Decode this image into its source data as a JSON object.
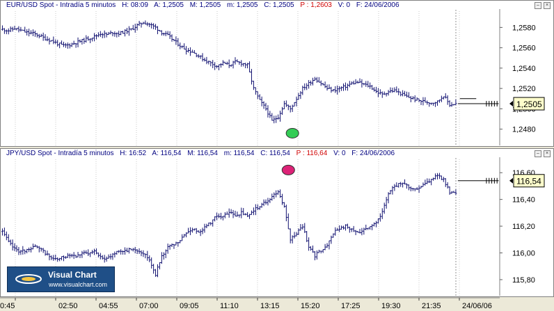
{
  "top": {
    "title_parts": [
      "EUR/USD Spot - Intradía 5 minutos",
      "H: 08:09",
      "A: 1,2505",
      "M: 1,2505",
      "m: 1,2505",
      "C: 1,2505"
    ],
    "title_red": "P : 1,2603",
    "title_tail": [
      "V: 0",
      "F: 24/06/2006"
    ],
    "price_label": "1,2505"
  },
  "bottom": {
    "title_parts": [
      "JPY/USD Spot - Intradía 5 minutos",
      "H: 16:52",
      "A: 116,54",
      "M: 116,54",
      "m: 116,54",
      "C: 116,54"
    ],
    "title_red": "P : 116,64",
    "title_tail": [
      "V: 0",
      "F: 24/06/2006"
    ],
    "price_label": "116,54"
  },
  "logo": {
    "name": "Visual Chart",
    "url": "www.visualchart.com"
  },
  "colors": {
    "bars": "#101070",
    "marker_green": "#33cc55",
    "marker_magenta": "#dd2277",
    "label_bg": "#ffffcc"
  },
  "chart_data": [
    {
      "type": "ohlc",
      "title": "EUR/USD Spot - Intradía 5 minutos",
      "ylim": [
        1.2464,
        1.2596
      ],
      "y_ticks": [
        "1,2580",
        "1,2560",
        "1,2540",
        "1,2520",
        "1,2500",
        "1,2480"
      ],
      "y_tick_values": [
        1.258,
        1.256,
        1.254,
        1.252,
        1.25,
        1.248
      ],
      "x_ticks": [
        "0:45",
        "02:50",
        "04:55",
        "07:00",
        "09:05",
        "11:10",
        "13:15",
        "15:20",
        "17:25",
        "19:30",
        "21:35",
        "24/06/06"
      ],
      "close_path": [
        [
          0,
          1.2578
        ],
        [
          3,
          1.2577
        ],
        [
          6,
          1.2579
        ],
        [
          9,
          1.2577
        ],
        [
          12,
          1.2575
        ],
        [
          15,
          1.2574
        ],
        [
          18,
          1.2572
        ],
        [
          21,
          1.2569
        ],
        [
          24,
          1.2567
        ],
        [
          27,
          1.2564
        ],
        [
          30,
          1.2562
        ],
        [
          33,
          1.2563
        ],
        [
          36,
          1.2565
        ],
        [
          39,
          1.2567
        ],
        [
          42,
          1.2569
        ],
        [
          45,
          1.2571
        ],
        [
          48,
          1.2574
        ],
        [
          51,
          1.2573
        ],
        [
          54,
          1.2575
        ],
        [
          57,
          1.2574
        ],
        [
          60,
          1.2576
        ],
        [
          63,
          1.2578
        ],
        [
          66,
          1.2582
        ],
        [
          69,
          1.2585
        ],
        [
          72,
          1.2583
        ],
        [
          75,
          1.258
        ],
        [
          78,
          1.2575
        ],
        [
          81,
          1.2572
        ],
        [
          84,
          1.2567
        ],
        [
          87,
          1.2562
        ],
        [
          90,
          1.2558
        ],
        [
          93,
          1.2556
        ],
        [
          96,
          1.2552
        ],
        [
          99,
          1.2548
        ],
        [
          102,
          1.2545
        ],
        [
          105,
          1.2542
        ],
        [
          108,
          1.2545
        ],
        [
          111,
          1.2543
        ],
        [
          114,
          1.2546
        ],
        [
          117,
          1.2545
        ],
        [
          120,
          1.2543
        ],
        [
          123,
          1.252
        ],
        [
          126,
          1.2508
        ],
        [
          129,
          1.25
        ],
        [
          132,
          1.2488
        ],
        [
          135,
          1.2492
        ],
        [
          138,
          1.2505
        ],
        [
          141,
          1.25
        ],
        [
          144,
          1.251
        ],
        [
          147,
          1.252
        ],
        [
          150,
          1.2525
        ],
        [
          153,
          1.253
        ],
        [
          156,
          1.2525
        ],
        [
          159,
          1.252
        ],
        [
          162,
          1.2518
        ],
        [
          165,
          1.252
        ],
        [
          168,
          1.2522
        ],
        [
          171,
          1.2525
        ],
        [
          174,
          1.2526
        ],
        [
          177,
          1.2524
        ],
        [
          180,
          1.2522
        ],
        [
          183,
          1.2517
        ],
        [
          186,
          1.2514
        ],
        [
          189,
          1.2517
        ],
        [
          192,
          1.2518
        ],
        [
          195,
          1.2515
        ],
        [
          198,
          1.2512
        ],
        [
          201,
          1.251
        ],
        [
          204,
          1.2508
        ],
        [
          207,
          1.2507
        ],
        [
          210,
          1.2506
        ],
        [
          213,
          1.2507
        ],
        [
          216,
          1.2513
        ],
        [
          219,
          1.2504
        ],
        [
          222,
          1.2505
        ]
      ],
      "tail": {
        "from_index": 223,
        "to_index": 243,
        "level": 1.2505,
        "high": 1.251
      },
      "marker": {
        "index": 142,
        "value": 1.2476,
        "color": "green"
      },
      "last_close": 1.2505
    },
    {
      "type": "ohlc",
      "title": "JPY/USD Spot - Intradía 5 minutos",
      "ylim": [
        115.68,
        116.7
      ],
      "y_ticks": [
        "116,60",
        "116,40",
        "116,20",
        "116,00",
        "115,80"
      ],
      "y_tick_values": [
        116.6,
        116.4,
        116.2,
        116.0,
        115.8
      ],
      "x_ticks": [
        "0:45",
        "02:50",
        "04:55",
        "07:00",
        "09:05",
        "11:10",
        "13:15",
        "15:20",
        "17:25",
        "19:30",
        "21:35",
        "24/06/06"
      ],
      "close_path": [
        [
          0,
          116.16
        ],
        [
          3,
          116.08
        ],
        [
          6,
          116.03
        ],
        [
          9,
          116.01
        ],
        [
          12,
          116.02
        ],
        [
          15,
          116.05
        ],
        [
          18,
          116.03
        ],
        [
          21,
          116.0
        ],
        [
          24,
          115.96
        ],
        [
          27,
          115.95
        ],
        [
          30,
          115.97
        ],
        [
          33,
          115.99
        ],
        [
          36,
          115.98
        ],
        [
          39,
          116.0
        ],
        [
          42,
          115.99
        ],
        [
          45,
          116.01
        ],
        [
          48,
          115.98
        ],
        [
          51,
          115.95
        ],
        [
          54,
          115.99
        ],
        [
          57,
          116.02
        ],
        [
          60,
          116.01
        ],
        [
          63,
          116.03
        ],
        [
          66,
          116.02
        ],
        [
          69,
          116.0
        ],
        [
          72,
          115.95
        ],
        [
          75,
          115.84
        ],
        [
          78,
          115.98
        ],
        [
          81,
          116.04
        ],
        [
          84,
          116.06
        ],
        [
          87,
          116.09
        ],
        [
          90,
          116.15
        ],
        [
          93,
          116.18
        ],
        [
          96,
          116.16
        ],
        [
          99,
          116.19
        ],
        [
          102,
          116.23
        ],
        [
          105,
          116.28
        ],
        [
          108,
          116.27
        ],
        [
          111,
          116.3
        ],
        [
          114,
          116.28
        ],
        [
          117,
          116.3
        ],
        [
          120,
          116.27
        ],
        [
          123,
          116.32
        ],
        [
          126,
          116.35
        ],
        [
          129,
          116.38
        ],
        [
          132,
          116.42
        ],
        [
          135,
          116.46
        ],
        [
          138,
          116.34
        ],
        [
          141,
          116.1
        ],
        [
          144,
          116.15
        ],
        [
          147,
          116.2
        ],
        [
          150,
          116.05
        ],
        [
          153,
          115.98
        ],
        [
          156,
          116.02
        ],
        [
          159,
          116.05
        ],
        [
          162,
          116.15
        ],
        [
          165,
          116.18
        ],
        [
          168,
          116.2
        ],
        [
          171,
          116.17
        ],
        [
          174,
          116.15
        ],
        [
          177,
          116.18
        ],
        [
          180,
          116.2
        ],
        [
          183,
          116.22
        ],
        [
          186,
          116.3
        ],
        [
          189,
          116.45
        ],
        [
          192,
          116.5
        ],
        [
          195,
          116.52
        ],
        [
          198,
          116.5
        ],
        [
          201,
          116.48
        ],
        [
          204,
          116.49
        ],
        [
          207,
          116.52
        ],
        [
          210,
          116.55
        ],
        [
          213,
          116.58
        ],
        [
          216,
          116.55
        ],
        [
          219,
          116.45
        ],
        [
          222,
          116.44
        ]
      ],
      "tail": {
        "from_index": 223,
        "to_index": 243,
        "level": 116.54,
        "low": 116.5
      },
      "marker": {
        "index": 140,
        "value": 116.62,
        "color": "magenta"
      },
      "last_close": 116.54
    }
  ]
}
